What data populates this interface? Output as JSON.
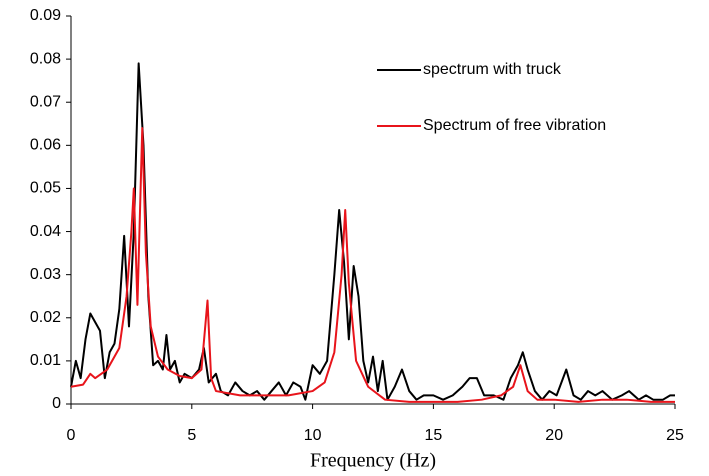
{
  "chart_data": {
    "type": "line",
    "x_label": "Frequency (Hz)",
    "xlim": [
      0,
      25
    ],
    "xticks": [
      0,
      5,
      10,
      15,
      20,
      25
    ],
    "ylim": [
      0,
      0.09
    ],
    "yticks": [
      0,
      0.01,
      0.02,
      0.03,
      0.04,
      0.05,
      0.06,
      0.07,
      0.08,
      0.09
    ],
    "grid": false,
    "legend": "upper right",
    "series": [
      {
        "name": "spectrum with truck",
        "color": "#000000",
        "x": [
          0,
          0.2,
          0.4,
          0.6,
          0.8,
          1.0,
          1.2,
          1.4,
          1.6,
          1.8,
          2.0,
          2.2,
          2.4,
          2.6,
          2.8,
          3.0,
          3.2,
          3.4,
          3.6,
          3.8,
          3.95,
          4.1,
          4.3,
          4.5,
          4.7,
          5.0,
          5.3,
          5.5,
          5.7,
          6.0,
          6.2,
          6.5,
          6.8,
          7.1,
          7.4,
          7.7,
          8.0,
          8.3,
          8.6,
          8.9,
          9.2,
          9.5,
          9.7,
          10.0,
          10.3,
          10.6,
          10.9,
          11.1,
          11.3,
          11.5,
          11.7,
          11.9,
          12.1,
          12.3,
          12.5,
          12.7,
          12.9,
          13.1,
          13.4,
          13.7,
          14.0,
          14.3,
          14.6,
          15.0,
          15.4,
          15.8,
          16.2,
          16.5,
          16.8,
          17.1,
          17.5,
          17.9,
          18.2,
          18.5,
          18.7,
          18.9,
          19.2,
          19.5,
          19.8,
          20.1,
          20.5,
          20.8,
          21.1,
          21.4,
          21.7,
          22.0,
          22.4,
          22.8,
          23.1,
          23.5,
          23.8,
          24.1,
          24.5,
          24.8,
          25.0
        ],
        "values": [
          0.004,
          0.01,
          0.006,
          0.015,
          0.021,
          0.019,
          0.017,
          0.006,
          0.012,
          0.014,
          0.022,
          0.039,
          0.018,
          0.04,
          0.079,
          0.06,
          0.025,
          0.009,
          0.01,
          0.008,
          0.016,
          0.008,
          0.01,
          0.005,
          0.007,
          0.006,
          0.008,
          0.013,
          0.005,
          0.007,
          0.003,
          0.002,
          0.005,
          0.003,
          0.002,
          0.003,
          0.001,
          0.003,
          0.005,
          0.002,
          0.005,
          0.004,
          0.001,
          0.009,
          0.007,
          0.01,
          0.03,
          0.045,
          0.033,
          0.015,
          0.032,
          0.025,
          0.01,
          0.005,
          0.011,
          0.003,
          0.01,
          0.001,
          0.004,
          0.008,
          0.003,
          0.001,
          0.002,
          0.002,
          0.001,
          0.002,
          0.004,
          0.006,
          0.006,
          0.002,
          0.002,
          0.001,
          0.006,
          0.009,
          0.012,
          0.008,
          0.003,
          0.001,
          0.003,
          0.002,
          0.008,
          0.002,
          0.001,
          0.003,
          0.002,
          0.003,
          0.001,
          0.002,
          0.003,
          0.001,
          0.002,
          0.001,
          0.001,
          0.002,
          0.002
        ]
      },
      {
        "name": "Spectrum of free vibration",
        "color": "#e8141b",
        "x": [
          0,
          0.5,
          0.8,
          1.0,
          1.5,
          2.0,
          2.3,
          2.5,
          2.6,
          2.75,
          2.95,
          3.1,
          3.3,
          3.6,
          4.0,
          4.5,
          5.0,
          5.4,
          5.65,
          5.8,
          6.0,
          7.0,
          8.0,
          9.0,
          10.0,
          10.5,
          10.9,
          11.2,
          11.35,
          11.5,
          11.8,
          12.3,
          13.0,
          14.0,
          15.0,
          16.0,
          17.0,
          17.8,
          18.3,
          18.6,
          18.9,
          19.3,
          20.0,
          21.0,
          22.0,
          23.0,
          24.0,
          25.0
        ],
        "values": [
          0.004,
          0.0045,
          0.007,
          0.006,
          0.008,
          0.013,
          0.025,
          0.04,
          0.05,
          0.023,
          0.064,
          0.035,
          0.018,
          0.011,
          0.008,
          0.0065,
          0.006,
          0.008,
          0.024,
          0.006,
          0.003,
          0.002,
          0.002,
          0.002,
          0.003,
          0.005,
          0.012,
          0.03,
          0.045,
          0.028,
          0.01,
          0.004,
          0.001,
          0.0005,
          0.0005,
          0.0005,
          0.001,
          0.002,
          0.004,
          0.009,
          0.003,
          0.001,
          0.001,
          0.0005,
          0.001,
          0.001,
          0.0005,
          0.0005
        ]
      }
    ]
  }
}
